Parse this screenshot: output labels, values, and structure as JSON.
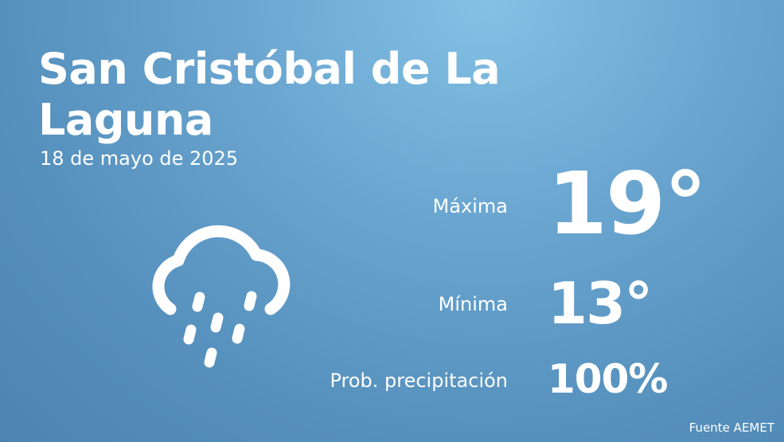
{
  "header": {
    "title_line1": "San Cristóbal de La",
    "title_line2": "Laguna",
    "date": "18 de mayo de 2025"
  },
  "forecast": {
    "max_label": "Máxima",
    "max_value": "19°",
    "min_label": "Mínima",
    "min_value": "13°",
    "precip_label": "Prob. precipitación",
    "precip_value": "100%"
  },
  "footer": {
    "source": "Fuente AEMET"
  }
}
